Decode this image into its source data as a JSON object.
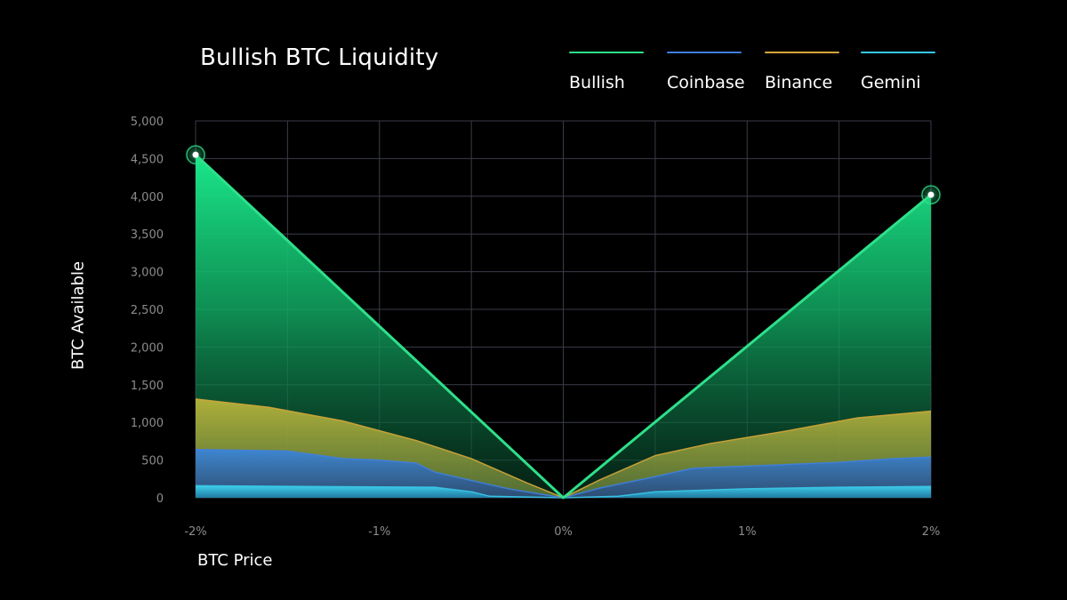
{
  "title": "Bullish BTC Liquidity",
  "legend": [
    {
      "label": "Bullish",
      "color": "#2ee08a"
    },
    {
      "label": "Coinbase",
      "color": "#3f7fe0"
    },
    {
      "label": "Binance",
      "color": "#d4a63a"
    },
    {
      "label": "Gemini",
      "color": "#38c8e8"
    }
  ],
  "chart_data": {
    "type": "area",
    "title": "Bullish BTC Liquidity",
    "xlabel": "BTC Price",
    "ylabel": "BTC Available",
    "xlim": [
      -2,
      2
    ],
    "ylim": [
      0,
      5000
    ],
    "x_tick_labels": [
      {
        "value": -2,
        "label": "-2%"
      },
      {
        "value": -1,
        "label": "-1%"
      },
      {
        "value": 0,
        "label": "0%"
      },
      {
        "value": 1,
        "label": "1%"
      },
      {
        "value": 2,
        "label": "2%"
      }
    ],
    "y_tick_labels": [
      "0",
      "500",
      "1,000",
      "1,500",
      "2,000",
      "2,500",
      "3,000",
      "3,500",
      "4,000",
      "4,500",
      "5,000"
    ],
    "grid": true,
    "legend_position": "top-right",
    "series": [
      {
        "name": "Bullish",
        "color": "#2ee08a",
        "x": [
          -2,
          0,
          2
        ],
        "values": [
          4550,
          0,
          4020
        ]
      },
      {
        "name": "Binance",
        "color": "#d4a63a",
        "x": [
          -2,
          -1.6,
          -1.2,
          -0.8,
          -0.5,
          -0.2,
          0,
          0.2,
          0.5,
          0.8,
          1.2,
          1.6,
          2
        ],
        "values": [
          1310,
          1200,
          1020,
          760,
          520,
          200,
          0,
          240,
          560,
          720,
          880,
          1060,
          1150
        ]
      },
      {
        "name": "Coinbase",
        "color": "#3f7fe0",
        "x": [
          -2,
          -1.5,
          -1.2,
          -1.0,
          -0.8,
          -0.7,
          -0.5,
          -0.3,
          0,
          0.2,
          0.5,
          0.7,
          1.0,
          1.2,
          1.5,
          1.8,
          2
        ],
        "values": [
          640,
          620,
          520,
          500,
          460,
          340,
          230,
          120,
          0,
          130,
          280,
          390,
          420,
          440,
          470,
          520,
          540
        ]
      },
      {
        "name": "Gemini",
        "color": "#38c8e8",
        "x": [
          -2,
          -1.4,
          -0.7,
          -0.5,
          -0.4,
          0,
          0.3,
          0.5,
          1.0,
          1.5,
          2
        ],
        "values": [
          160,
          150,
          140,
          80,
          20,
          0,
          20,
          80,
          120,
          140,
          150
        ]
      }
    ],
    "markers": [
      {
        "series": "Bullish",
        "x": -2,
        "value": 4550
      },
      {
        "series": "Bullish",
        "x": 2,
        "value": 4020
      }
    ]
  }
}
